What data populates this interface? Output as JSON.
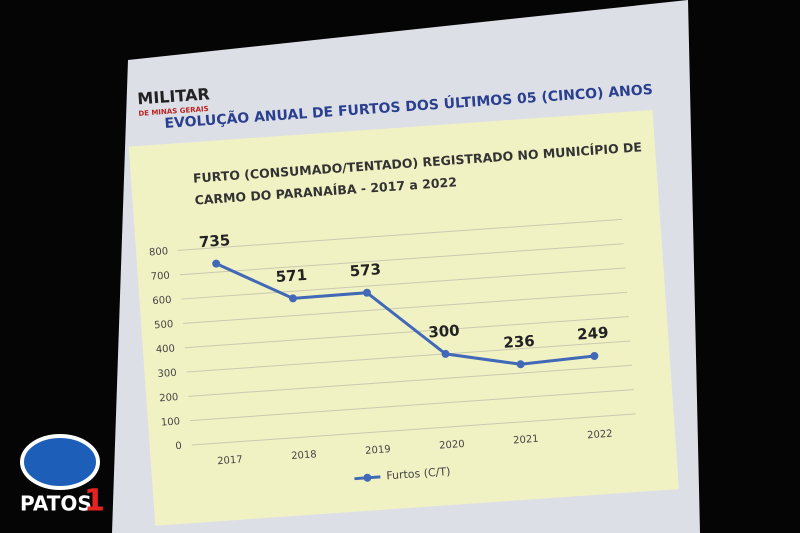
{
  "slide_title": "EVOLUÇÃO ANUAL DE FURTOS DOS ÚLTIMOS 05 (CINCO) ANOS",
  "logo": {
    "name": "MILITAR",
    "subtitle": "DE MINAS GERAIS"
  },
  "watermark": {
    "text": "PATOS",
    "number": "1"
  },
  "chart_data": {
    "type": "line",
    "title": [
      "FURTO (CONSUMADO/TENTADO) REGISTRADO NO MUNICÍPIO DE",
      "CARMO DO PARANAÍBA - 2017 a 2022"
    ],
    "categories": [
      "2017",
      "2018",
      "2019",
      "2020",
      "2021",
      "2022"
    ],
    "series": [
      {
        "name": "Furtos (C/T)",
        "color": "#4169b8",
        "values": [
          735,
          571,
          573,
          300,
          236,
          249
        ]
      }
    ],
    "ylim": [
      0,
      800
    ],
    "yticks": [
      0,
      100,
      200,
      300,
      400,
      500,
      600,
      700,
      800
    ],
    "grid": true,
    "legend": "bottom"
  }
}
